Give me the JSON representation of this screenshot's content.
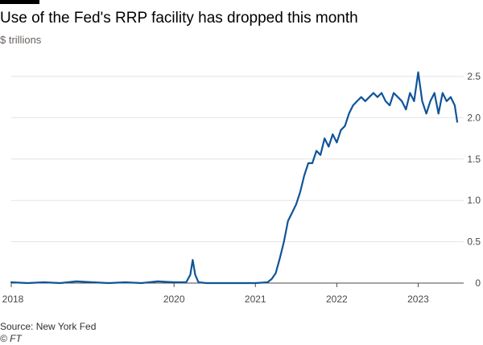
{
  "title": "Use of the Fed's RRP facility has dropped this month",
  "subtitle": "$ trillions",
  "source": "Source: New York Fed",
  "credit": "© FT",
  "colors": {
    "line": "#0f5499",
    "grid": "#e6e3e1",
    "axis": "#4d4845"
  },
  "chart_data": {
    "type": "line",
    "title": "Use of the Fed's RRP facility has dropped this month",
    "ylabel": "$ trillions",
    "xlabel": "",
    "ylim": [
      0,
      2.5
    ],
    "xlim": [
      2018,
      2023.5
    ],
    "yticks": [
      0,
      0.5,
      1.0,
      1.5,
      2.0,
      2.5
    ],
    "ytick_labels": [
      "0",
      "0.5",
      "1.0",
      "1.5",
      "2.0",
      "2.5"
    ],
    "xticks": [
      2018,
      2020,
      2021,
      2022,
      2023
    ],
    "xtick_labels": [
      "2018",
      "2020",
      "2021",
      "2022",
      "2023"
    ],
    "grid": true,
    "y_axis_side": "right",
    "legend": "none",
    "x": [
      2018.0,
      2018.2,
      2018.4,
      2018.6,
      2018.8,
      2019.0,
      2019.2,
      2019.4,
      2019.6,
      2019.8,
      2020.0,
      2020.15,
      2020.2,
      2020.23,
      2020.26,
      2020.3,
      2020.4,
      2020.6,
      2020.8,
      2021.0,
      2021.15,
      2021.2,
      2021.25,
      2021.3,
      2021.35,
      2021.4,
      2021.45,
      2021.5,
      2021.55,
      2021.6,
      2021.65,
      2021.7,
      2021.75,
      2021.8,
      2021.85,
      2021.9,
      2021.95,
      2022.0,
      2022.05,
      2022.1,
      2022.15,
      2022.2,
      2022.25,
      2022.3,
      2022.35,
      2022.4,
      2022.45,
      2022.5,
      2022.55,
      2022.6,
      2022.65,
      2022.7,
      2022.75,
      2022.8,
      2022.85,
      2022.9,
      2022.95,
      2023.0,
      2023.05,
      2023.1,
      2023.15,
      2023.2,
      2023.25,
      2023.3,
      2023.35,
      2023.4,
      2023.45,
      2023.48
    ],
    "values": [
      0.01,
      0.0,
      0.01,
      0.0,
      0.02,
      0.01,
      0.0,
      0.01,
      0.0,
      0.02,
      0.01,
      0.01,
      0.1,
      0.28,
      0.1,
      0.01,
      0.0,
      0.0,
      0.0,
      0.0,
      0.01,
      0.05,
      0.12,
      0.3,
      0.5,
      0.75,
      0.85,
      0.95,
      1.1,
      1.3,
      1.45,
      1.45,
      1.6,
      1.55,
      1.75,
      1.65,
      1.8,
      1.7,
      1.85,
      1.9,
      2.05,
      2.15,
      2.2,
      2.25,
      2.2,
      2.25,
      2.3,
      2.25,
      2.3,
      2.2,
      2.15,
      2.3,
      2.25,
      2.2,
      2.1,
      2.3,
      2.2,
      2.55,
      2.2,
      2.05,
      2.2,
      2.3,
      2.05,
      2.3,
      2.2,
      2.25,
      2.15,
      1.95
    ]
  }
}
